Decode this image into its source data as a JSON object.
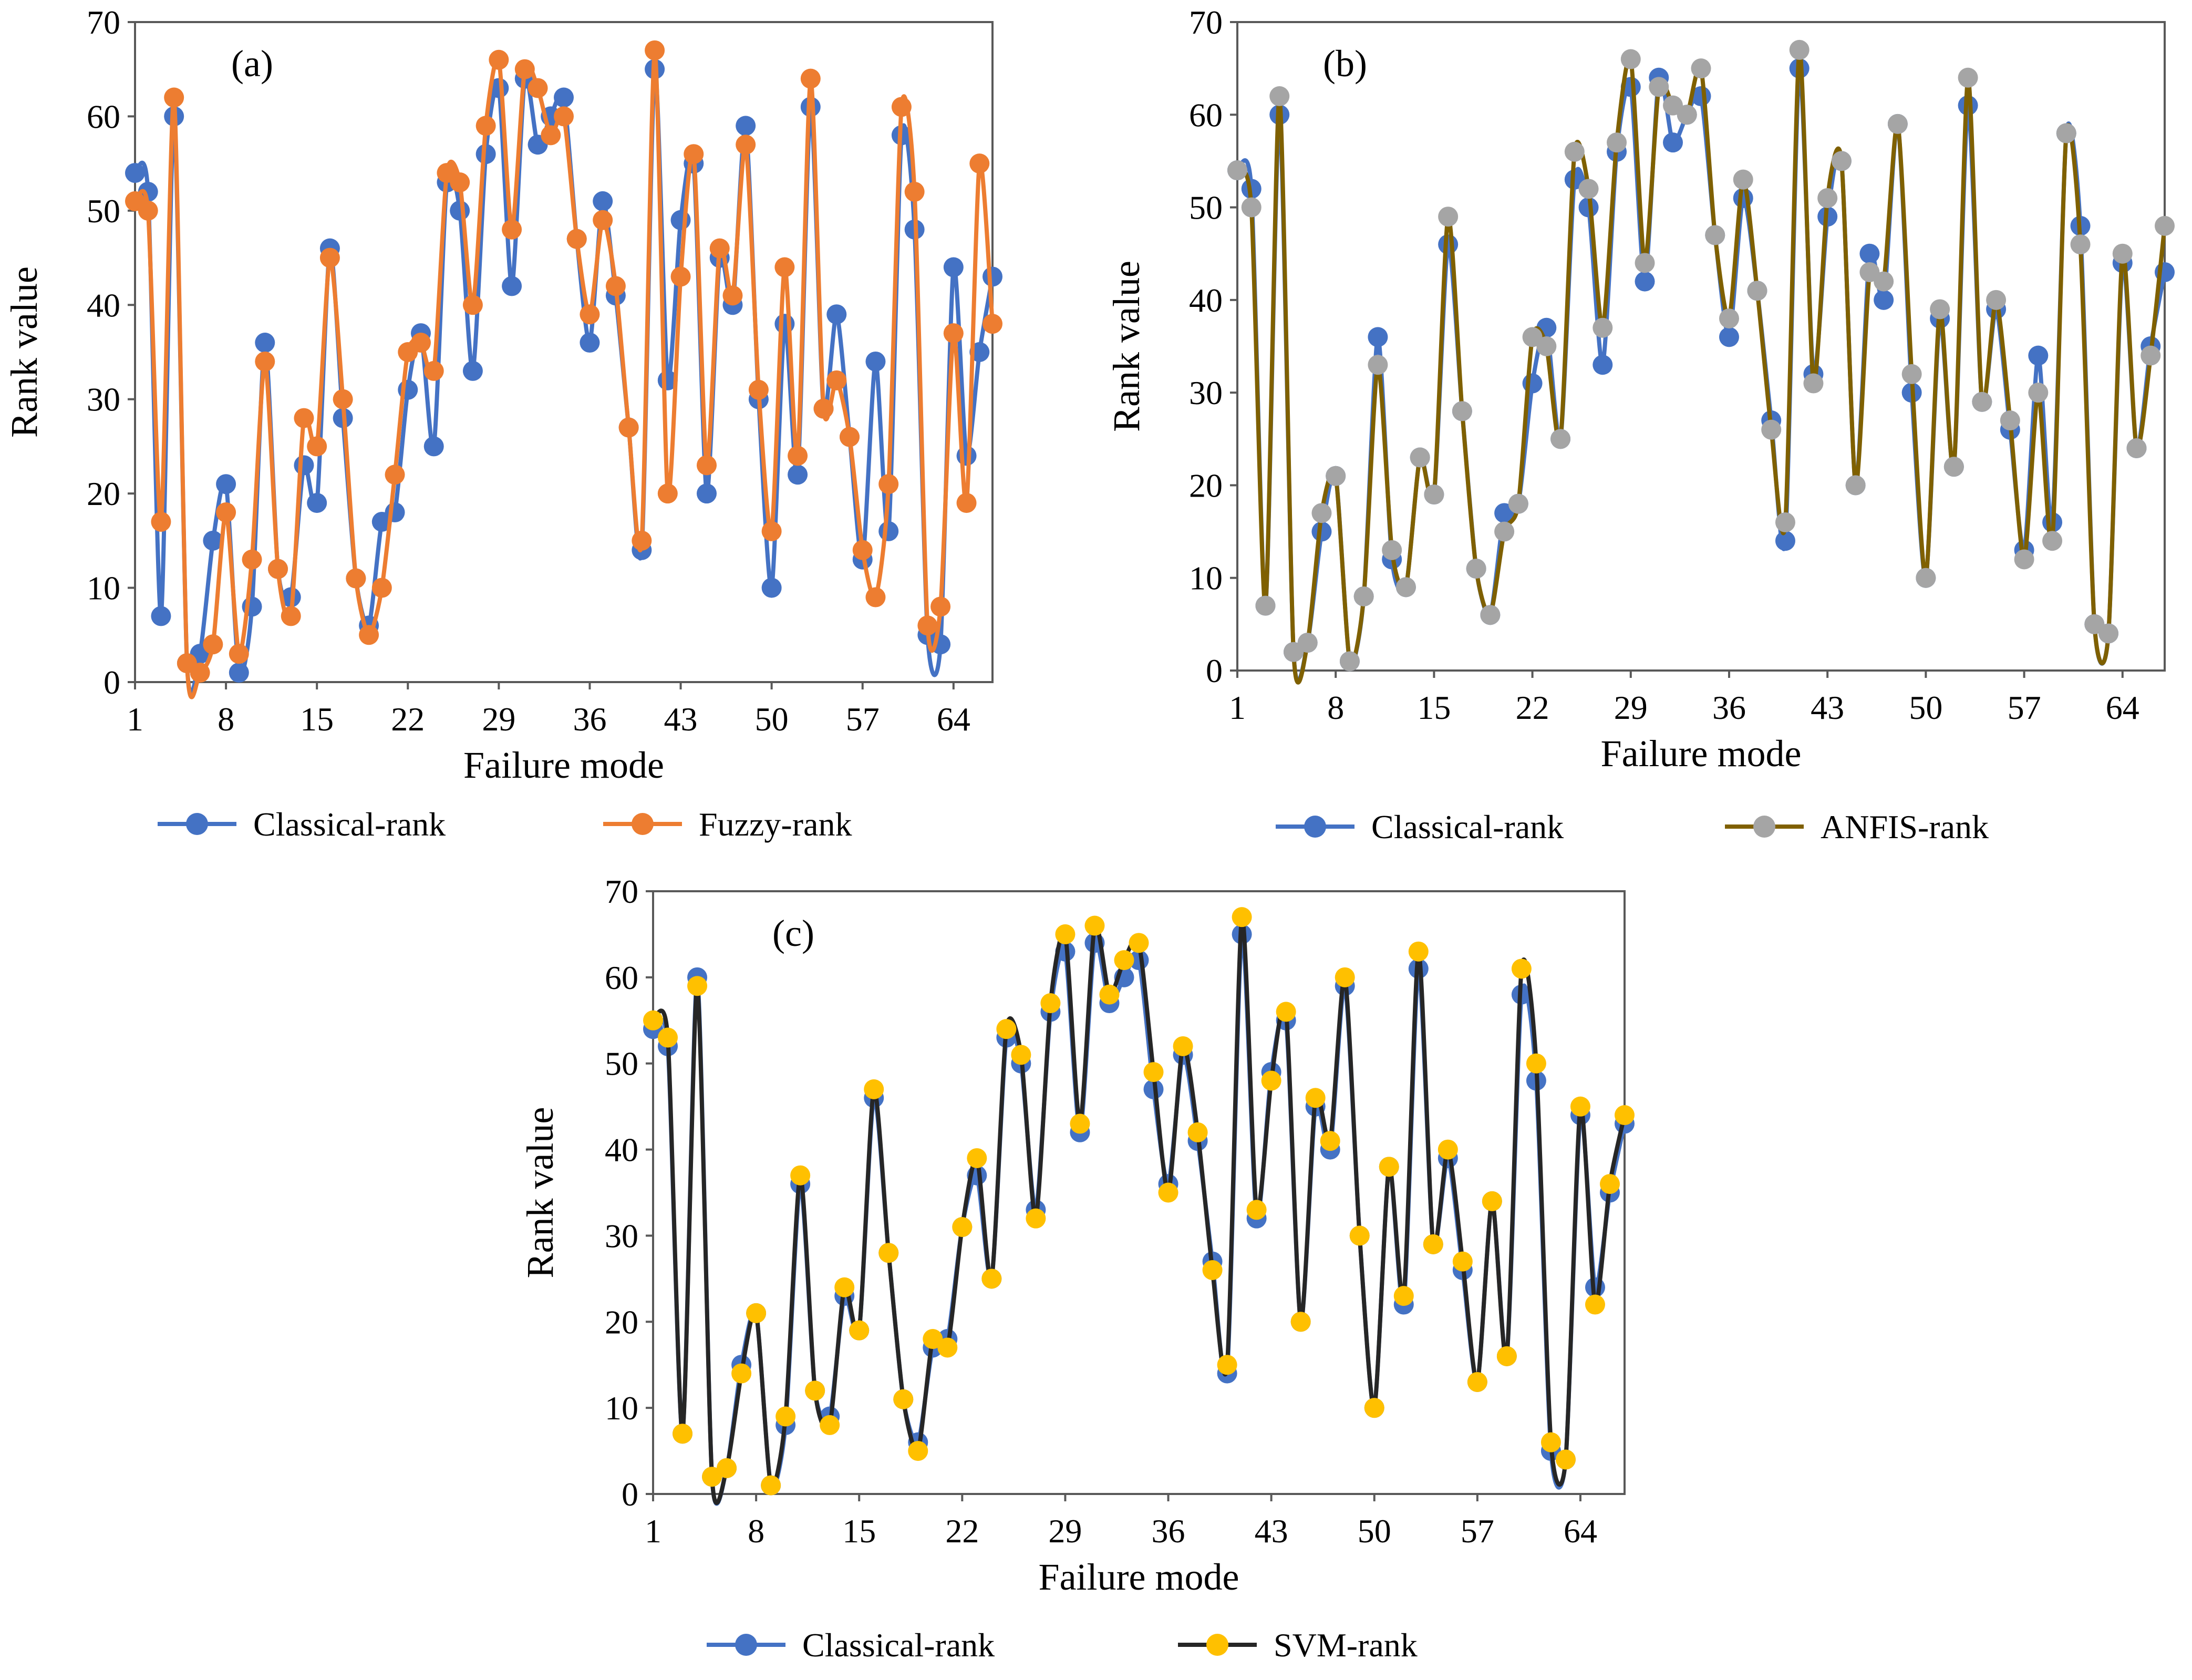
{
  "chart_data": [
    {
      "type": "line",
      "panel_label": "(a)",
      "xlabel": "Failure mode",
      "ylabel": "Rank value",
      "ylim": [
        0,
        70
      ],
      "yticks": [
        0,
        10,
        20,
        30,
        40,
        50,
        60,
        70
      ],
      "xlim": [
        1,
        67
      ],
      "xticks": [
        1,
        8,
        15,
        22,
        29,
        36,
        43,
        50,
        57,
        64
      ],
      "grid": false,
      "legend": "bottom",
      "series": [
        {
          "name": "Classical-rank",
          "line_color": "#4472C4",
          "marker_color": "#4472C4",
          "values": [
            54,
            52,
            7,
            60,
            2,
            3,
            15,
            21,
            1,
            8,
            36,
            12,
            9,
            23,
            19,
            46,
            28,
            11,
            6,
            17,
            18,
            31,
            37,
            25,
            53,
            50,
            33,
            56,
            63,
            42,
            64,
            57,
            60,
            62,
            47,
            36,
            51,
            41,
            27,
            14,
            65,
            32,
            49,
            55,
            20,
            45,
            40,
            59,
            30,
            10,
            38,
            22,
            61,
            29,
            39,
            26,
            13,
            34,
            16,
            58,
            48,
            5,
            4,
            44,
            24,
            35,
            43
          ]
        },
        {
          "name": "Fuzzy-rank",
          "line_color": "#ED7D31",
          "marker_color": "#ED7D31",
          "values": [
            51,
            50,
            17,
            62,
            2,
            1,
            4,
            18,
            3,
            13,
            34,
            12,
            7,
            28,
            25,
            45,
            30,
            11,
            5,
            10,
            22,
            35,
            36,
            33,
            54,
            53,
            40,
            59,
            66,
            48,
            65,
            63,
            58,
            60,
            47,
            39,
            49,
            42,
            27,
            15,
            67,
            20,
            43,
            56,
            23,
            46,
            41,
            57,
            31,
            16,
            44,
            24,
            64,
            29,
            32,
            26,
            14,
            9,
            21,
            61,
            52,
            6,
            8,
            37,
            19,
            55,
            38
          ]
        }
      ]
    },
    {
      "type": "line",
      "panel_label": "(b)",
      "xlabel": "Failure mode",
      "ylabel": "Rank value",
      "ylim": [
        0,
        70
      ],
      "yticks": [
        0,
        10,
        20,
        30,
        40,
        50,
        60,
        70
      ],
      "xlim": [
        1,
        67
      ],
      "xticks": [
        1,
        8,
        15,
        22,
        29,
        36,
        43,
        50,
        57,
        64
      ],
      "grid": false,
      "legend": "bottom",
      "series": [
        {
          "name": "Classical-rank",
          "line_color": "#4472C4",
          "marker_color": "#4472C4",
          "values": [
            54,
            52,
            7,
            60,
            2,
            3,
            15,
            21,
            1,
            8,
            36,
            12,
            9,
            23,
            19,
            46,
            28,
            11,
            6,
            17,
            18,
            31,
            37,
            25,
            53,
            50,
            33,
            56,
            63,
            42,
            64,
            57,
            60,
            62,
            47,
            36,
            51,
            41,
            27,
            14,
            65,
            32,
            49,
            55,
            20,
            45,
            40,
            59,
            30,
            10,
            38,
            22,
            61,
            29,
            39,
            26,
            13,
            34,
            16,
            58,
            48,
            5,
            4,
            44,
            24,
            35,
            43
          ]
        },
        {
          "name": "ANFIS-rank",
          "line_color": "#7F6000",
          "marker_color": "#A5A5A5",
          "values": [
            54,
            50,
            7,
            62,
            2,
            3,
            17,
            21,
            1,
            8,
            33,
            13,
            9,
            23,
            19,
            49,
            28,
            11,
            6,
            15,
            18,
            36,
            35,
            25,
            56,
            52,
            37,
            57,
            66,
            44,
            63,
            61,
            60,
            65,
            47,
            38,
            53,
            41,
            26,
            16,
            67,
            31,
            51,
            55,
            20,
            43,
            42,
            59,
            32,
            10,
            39,
            22,
            64,
            29,
            40,
            27,
            12,
            30,
            14,
            58,
            46,
            5,
            4,
            45,
            24,
            34,
            48
          ]
        }
      ]
    },
    {
      "type": "line",
      "panel_label": "(c)",
      "xlabel": "Failure mode",
      "ylabel": "Rank value",
      "ylim": [
        0,
        70
      ],
      "yticks": [
        0,
        10,
        20,
        30,
        40,
        50,
        60,
        70
      ],
      "xlim": [
        1,
        67
      ],
      "xticks": [
        1,
        8,
        15,
        22,
        29,
        36,
        43,
        50,
        57,
        64
      ],
      "grid": false,
      "legend": "bottom",
      "series": [
        {
          "name": "Classical-rank",
          "line_color": "#4472C4",
          "marker_color": "#4472C4",
          "values": [
            54,
            52,
            7,
            60,
            2,
            3,
            15,
            21,
            1,
            8,
            36,
            12,
            9,
            23,
            19,
            46,
            28,
            11,
            6,
            17,
            18,
            31,
            37,
            25,
            53,
            50,
            33,
            56,
            63,
            42,
            64,
            57,
            60,
            62,
            47,
            36,
            51,
            41,
            27,
            14,
            65,
            32,
            49,
            55,
            20,
            45,
            40,
            59,
            30,
            10,
            38,
            22,
            61,
            29,
            39,
            26,
            13,
            34,
            16,
            58,
            48,
            5,
            4,
            44,
            24,
            35,
            43
          ]
        },
        {
          "name": "SVM-rank",
          "line_color": "#262626",
          "marker_color": "#FFC000",
          "values": [
            55,
            53,
            7,
            59,
            2,
            3,
            14,
            21,
            1,
            9,
            37,
            12,
            8,
            24,
            19,
            47,
            28,
            11,
            5,
            18,
            17,
            31,
            39,
            25,
            54,
            51,
            32,
            57,
            65,
            43,
            66,
            58,
            62,
            64,
            49,
            35,
            52,
            42,
            26,
            15,
            67,
            33,
            48,
            56,
            20,
            46,
            41,
            60,
            30,
            10,
            38,
            23,
            63,
            29,
            40,
            27,
            13,
            34,
            16,
            61,
            50,
            6,
            4,
            45,
            22,
            36,
            44
          ]
        }
      ]
    }
  ]
}
